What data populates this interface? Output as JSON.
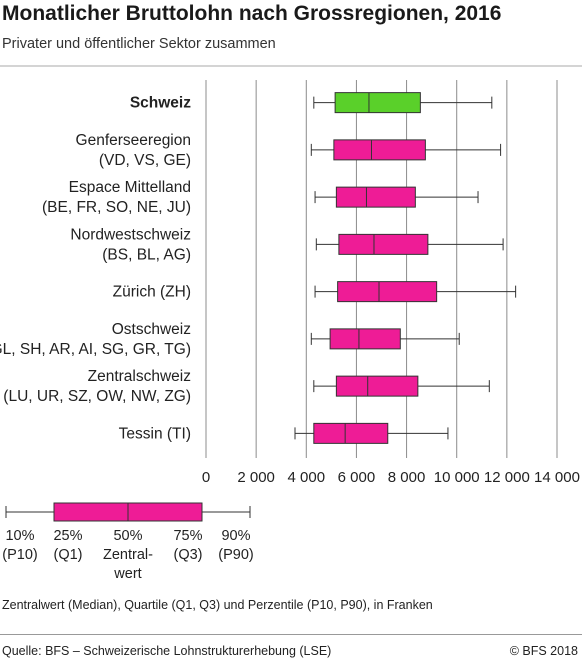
{
  "title": "Monatlicher Bruttolohn nach Grossregionen, 2016",
  "subtitle": "Privater und öffentlicher Sektor zusammen",
  "note": "Zentralwert (Median), Quartile (Q1, Q3) und Perzentile (P10, P90), in Franken",
  "source": "Quelle: BFS – Schweizerische Lohnstrukturerhebung (LSE)",
  "copyright": "© BFS 2018",
  "colors": {
    "highlight": "#5ad02a",
    "box": "#ee1c96",
    "grid": "#8c8c8c",
    "whisker": "#333333"
  },
  "chart_data": {
    "type": "boxplot",
    "xlim": [
      0,
      14000
    ],
    "x_ticks": [
      0,
      2000,
      4000,
      6000,
      8000,
      10000,
      12000,
      14000
    ],
    "x_tick_labels": [
      "0",
      "2 000",
      "4 000",
      "6 000",
      "8 000",
      "10 000",
      "12 000",
      "14 000"
    ],
    "categories": [
      {
        "lines": [
          "Schweiz"
        ],
        "bold": true,
        "highlight": true,
        "p10": 4300,
        "q1": 5150,
        "median": 6500,
        "q3": 8550,
        "p90": 11400
      },
      {
        "lines": [
          "Genferseeregion",
          "(VD, VS, GE)"
        ],
        "p10": 4200,
        "q1": 5100,
        "median": 6600,
        "q3": 8750,
        "p90": 11750
      },
      {
        "lines": [
          "Espace Mittelland",
          "(BE, FR, SO, NE, JU)"
        ],
        "p10": 4350,
        "q1": 5200,
        "median": 6400,
        "q3": 8350,
        "p90": 10850
      },
      {
        "lines": [
          "Nordwestschweiz",
          "(BS, BL, AG)"
        ],
        "p10": 4400,
        "q1": 5300,
        "median": 6700,
        "q3": 8850,
        "p90": 11850
      },
      {
        "lines": [
          "Zürich (ZH)"
        ],
        "p10": 4350,
        "q1": 5250,
        "median": 6900,
        "q3": 9200,
        "p90": 12350
      },
      {
        "lines": [
          "Ostschweiz",
          "(GL, SH, AR, AI, SG, GR, TG)"
        ],
        "p10": 4200,
        "q1": 4950,
        "median": 6100,
        "q3": 7750,
        "p90": 10100
      },
      {
        "lines": [
          "Zentralschweiz",
          "(LU, UR, SZ, OW, NW, ZG)"
        ],
        "p10": 4300,
        "q1": 5200,
        "median": 6450,
        "q3": 8450,
        "p90": 11300
      },
      {
        "lines": [
          "Tessin (TI)"
        ],
        "p10": 3550,
        "q1": 4300,
        "median": 5550,
        "q3": 7250,
        "p90": 9650
      }
    ]
  },
  "legend": {
    "items": [
      {
        "lines": [
          "10%",
          "(P10)"
        ]
      },
      {
        "lines": [
          "25%",
          "(Q1)"
        ]
      },
      {
        "lines": [
          "50%",
          "Zentral-",
          "wert"
        ]
      },
      {
        "lines": [
          "75%",
          "(Q3)"
        ]
      },
      {
        "lines": [
          "90%",
          "(P90)"
        ]
      }
    ]
  }
}
